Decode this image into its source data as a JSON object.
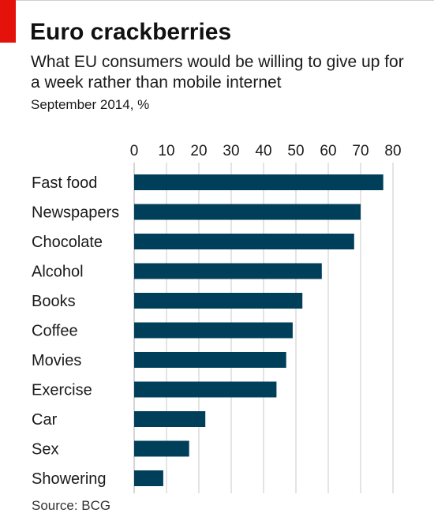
{
  "header": {
    "title": "Euro crackberries",
    "subtitle": "What EU consumers would be willing to give up for a week rather than mobile internet",
    "note": "September 2014, %"
  },
  "footer": {
    "source": "Source: BCG"
  },
  "colors": {
    "bar": "#003f5a",
    "gridline": "#c8c8c8",
    "accent": "#e3120b"
  },
  "chart_data": {
    "type": "bar",
    "orientation": "horizontal",
    "categories": [
      "Fast food",
      "Newspapers",
      "Chocolate",
      "Alcohol",
      "Books",
      "Coffee",
      "Movies",
      "Exercise",
      "Car",
      "Sex",
      "Showering"
    ],
    "values": [
      77,
      70,
      68,
      58,
      52,
      49,
      47,
      44,
      22,
      17,
      9
    ],
    "title": "Euro crackberries",
    "xlabel": "",
    "ylabel": "",
    "xlim": [
      0,
      80
    ],
    "xticks": [
      0,
      10,
      20,
      30,
      40,
      50,
      60,
      70,
      80
    ],
    "tick_position": "top",
    "grid": true
  }
}
